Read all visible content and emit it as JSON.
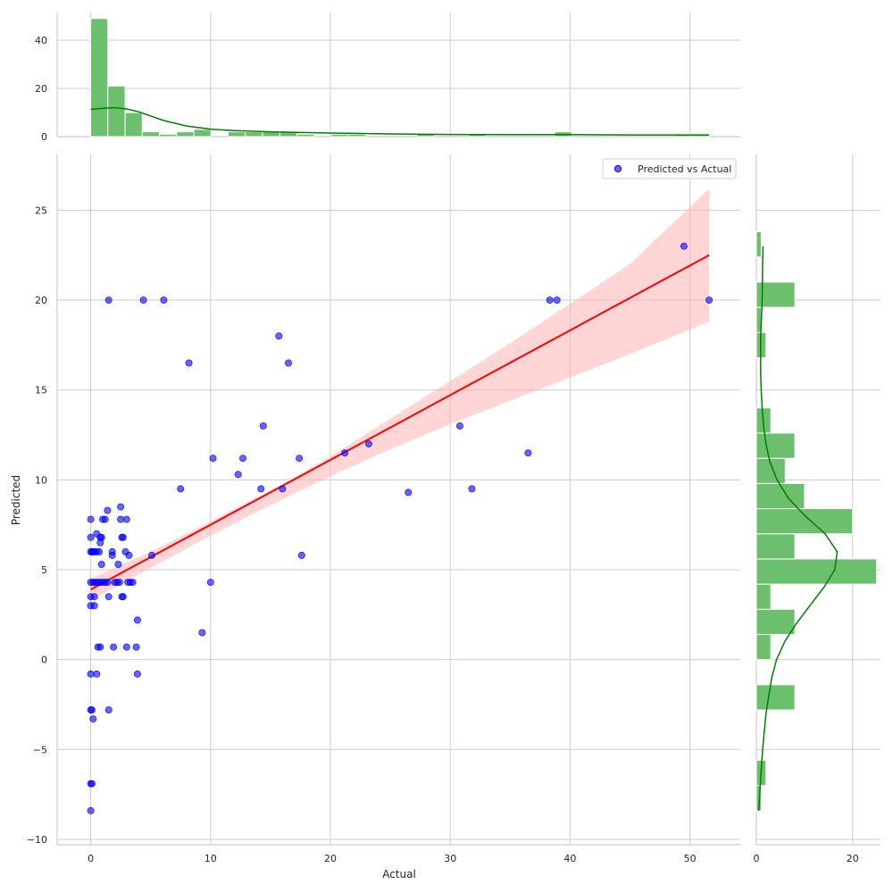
{
  "chart_data": {
    "type": "scatter",
    "title": "",
    "xlabel": "Actual",
    "ylabel": "Predicted",
    "xlim": [
      -2.8,
      54.2
    ],
    "ylim": [
      -10.3,
      28.1
    ],
    "x_ticks": [
      0,
      10,
      20,
      30,
      40,
      50
    ],
    "y_ticks": [
      -10,
      -5,
      0,
      5,
      10,
      15,
      20,
      25
    ],
    "grid": true,
    "legend": {
      "placement": "top-right",
      "entries": [
        "Predicted vs Actual"
      ]
    },
    "colors": {
      "points": "#0000ff",
      "fit_line": "#ff0000",
      "band": "#ffb3b3",
      "hist": "#6cbf6c",
      "hist_edge": "#ffffff",
      "kde": "#008000",
      "grid": "#cccccc",
      "spine": "#cccccc"
    },
    "series": [
      {
        "name": "Predicted vs Actual",
        "points": [
          [
            0,
            7.8
          ],
          [
            0,
            6.8
          ],
          [
            0,
            6.0
          ],
          [
            0.1,
            6.0
          ],
          [
            0.2,
            6.0
          ],
          [
            0.3,
            6.0
          ],
          [
            0.5,
            6.0
          ],
          [
            0.7,
            6.0
          ],
          [
            0,
            4.3
          ],
          [
            0.2,
            4.3
          ],
          [
            0.4,
            4.3
          ],
          [
            0.6,
            4.3
          ],
          [
            0.8,
            4.3
          ],
          [
            1.0,
            4.3
          ],
          [
            1.2,
            4.3
          ],
          [
            1.4,
            4.3
          ],
          [
            0,
            3.5
          ],
          [
            0.3,
            3.5
          ],
          [
            0,
            3.0
          ],
          [
            0.3,
            3.0
          ],
          [
            0.5,
            7.0
          ],
          [
            0.8,
            6.5
          ],
          [
            0.8,
            6.8
          ],
          [
            0.9,
            6.8
          ],
          [
            0.9,
            5.3
          ],
          [
            0.6,
            0.7
          ],
          [
            0.8,
            0.7
          ],
          [
            0,
            -0.8
          ],
          [
            0.5,
            -0.8
          ],
          [
            0,
            -2.8
          ],
          [
            0.1,
            -2.8
          ],
          [
            0.2,
            -3.3
          ],
          [
            0,
            -6.9
          ],
          [
            0.1,
            -6.9
          ],
          [
            0,
            -8.4
          ],
          [
            1.0,
            7.8
          ],
          [
            1.2,
            7.8
          ],
          [
            1.4,
            8.3
          ],
          [
            1.5,
            20.0
          ],
          [
            1.8,
            6.0
          ],
          [
            1.8,
            5.8
          ],
          [
            1.5,
            3.5
          ],
          [
            1.9,
            0.7
          ],
          [
            1.5,
            -2.8
          ],
          [
            2.0,
            4.3
          ],
          [
            2.2,
            4.3
          ],
          [
            2.4,
            4.3
          ],
          [
            2.3,
            5.3
          ],
          [
            2.5,
            7.8
          ],
          [
            2.5,
            8.5
          ],
          [
            2.6,
            6.8
          ],
          [
            2.7,
            6.8
          ],
          [
            2.7,
            3.5
          ],
          [
            2.6,
            3.5
          ],
          [
            2.9,
            6.0
          ],
          [
            3.0,
            7.8
          ],
          [
            3.0,
            0.7
          ],
          [
            3.1,
            4.3
          ],
          [
            3.3,
            4.3
          ],
          [
            3.5,
            4.3
          ],
          [
            3.2,
            5.8
          ],
          [
            3.9,
            2.2
          ],
          [
            3.8,
            0.7
          ],
          [
            3.9,
            -0.8
          ],
          [
            4.4,
            20.0
          ],
          [
            5.1,
            5.8
          ],
          [
            6.1,
            20.0
          ],
          [
            7.5,
            9.5
          ],
          [
            8.2,
            16.5
          ],
          [
            9.3,
            1.5
          ],
          [
            10.0,
            4.3
          ],
          [
            10.2,
            11.2
          ],
          [
            12.3,
            10.3
          ],
          [
            12.7,
            11.2
          ],
          [
            14.2,
            9.5
          ],
          [
            14.4,
            13.0
          ],
          [
            15.7,
            18.0
          ],
          [
            16.0,
            9.5
          ],
          [
            16.5,
            16.5
          ],
          [
            17.4,
            11.2
          ],
          [
            17.6,
            5.8
          ],
          [
            21.2,
            11.5
          ],
          [
            23.2,
            12.0
          ],
          [
            26.5,
            9.3
          ],
          [
            30.8,
            13.0
          ],
          [
            31.8,
            9.5
          ],
          [
            36.5,
            11.5
          ],
          [
            38.3,
            20.0
          ],
          [
            38.9,
            20.0
          ],
          [
            49.5,
            23.0
          ],
          [
            51.6,
            20.0
          ]
        ]
      }
    ],
    "fit_line": {
      "x": [
        0,
        51.6
      ],
      "y": [
        3.9,
        22.5
      ]
    },
    "confidence_band": {
      "x": [
        0,
        5,
        10,
        15,
        20,
        25,
        30,
        35,
        40,
        45,
        51.6
      ],
      "lower": [
        3.3,
        5.1,
        6.9,
        8.6,
        10.2,
        11.7,
        13.1,
        14.4,
        15.7,
        17.0,
        18.8
      ],
      "upper": [
        4.5,
        6.0,
        7.7,
        9.4,
        11.3,
        13.4,
        15.5,
        17.6,
        19.8,
        22.0,
        26.2
      ]
    },
    "top_histogram": {
      "ylim": [
        0,
        51.5
      ],
      "y_ticks": [
        0,
        20,
        40
      ],
      "bin_edges": [
        0,
        1.43,
        2.87,
        4.3,
        5.73,
        7.17,
        8.6,
        10.03,
        11.47,
        12.9,
        14.33,
        15.77,
        17.2,
        18.63,
        20.07,
        21.5,
        22.93,
        24.37,
        25.8,
        27.23,
        28.67,
        30.1,
        31.53,
        32.97,
        34.4,
        35.83,
        37.27,
        38.7,
        40.13,
        41.57,
        43.0,
        44.43,
        45.87,
        47.3,
        48.73,
        50.17,
        51.6
      ],
      "counts": [
        49,
        21,
        10,
        2,
        1,
        2,
        3,
        0,
        2,
        2,
        2,
        2,
        1,
        0,
        1,
        1,
        0,
        0,
        0,
        1,
        0,
        0,
        1,
        0,
        0,
        0,
        0,
        2,
        0,
        0,
        0,
        0,
        0,
        0,
        1,
        1
      ],
      "kde": {
        "x": [
          0,
          1,
          2,
          3,
          4,
          5,
          6,
          8,
          10,
          12,
          15,
          20,
          25,
          30,
          35,
          40,
          45,
          51.6
        ],
        "y": [
          11.3,
          11.8,
          12.0,
          11.5,
          10.3,
          8.6,
          6.8,
          4.4,
          3.1,
          2.5,
          2.0,
          1.5,
          1.1,
          0.9,
          0.8,
          0.8,
          0.7,
          0.7
        ]
      }
    },
    "right_histogram": {
      "xlim": [
        0,
        25.8
      ],
      "x_ticks": [
        0,
        20
      ],
      "bin_edges": [
        -8.4,
        -7.0,
        -5.6,
        -4.2,
        -2.8,
        -1.4,
        0.0,
        1.4,
        2.8,
        4.2,
        5.6,
        7.0,
        8.4,
        9.8,
        11.2,
        12.6,
        14.0,
        15.4,
        16.8,
        18.2,
        19.6,
        21.0,
        22.4,
        23.8
      ],
      "counts": [
        1,
        2,
        0,
        0,
        8,
        0,
        3,
        8,
        3,
        25,
        8,
        20,
        10,
        6,
        8,
        3,
        0,
        0,
        2,
        1,
        8,
        0,
        1
      ],
      "kde": {
        "y": [
          -8.4,
          -7,
          -5,
          -3,
          -1,
          0,
          1,
          2,
          3,
          4,
          5,
          6,
          7,
          8,
          9,
          10,
          11,
          12,
          13,
          14,
          15,
          16,
          18,
          20,
          22,
          23
        ],
        "x": [
          0.5,
          0.8,
          1.3,
          2.0,
          3.2,
          4.2,
          5.9,
          8.3,
          11.1,
          14.0,
          16.3,
          16.8,
          14.3,
          10.1,
          6.6,
          4.3,
          2.8,
          2.0,
          1.5,
          1.2,
          1.0,
          0.9,
          0.9,
          1.2,
          1.3,
          1.4
        ]
      }
    }
  }
}
